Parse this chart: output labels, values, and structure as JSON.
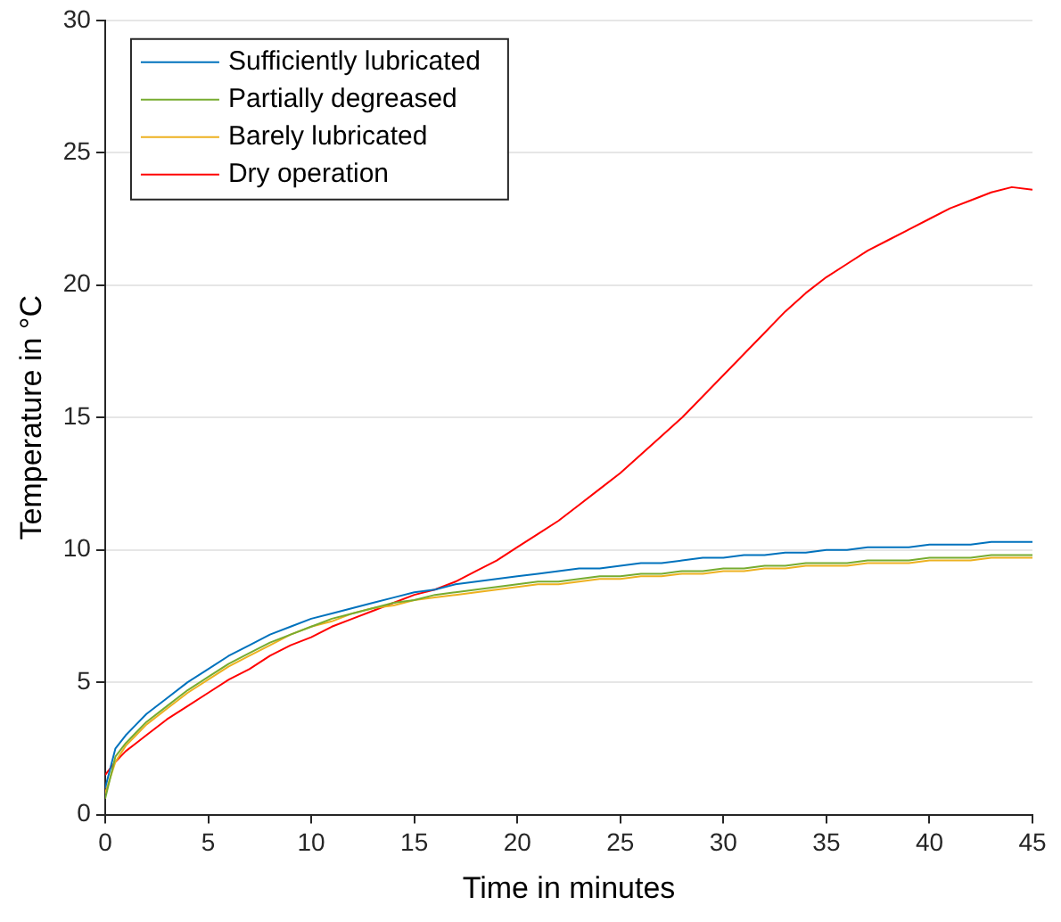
{
  "chart_data": {
    "type": "line",
    "xlabel": "Time in minutes",
    "ylabel": "Temperature in °C",
    "x": [
      0,
      0.5,
      1,
      1.5,
      2,
      3,
      4,
      5,
      6,
      7,
      8,
      9,
      10,
      11,
      12,
      13,
      14,
      15,
      16,
      17,
      18,
      19,
      20,
      21,
      22,
      23,
      24,
      25,
      26,
      27,
      28,
      29,
      30,
      31,
      32,
      33,
      34,
      35,
      36,
      37,
      38,
      39,
      40,
      41,
      42,
      43,
      44,
      45
    ],
    "series": [
      {
        "name": "Sufficiently lubricated",
        "color": "#0072bd",
        "values": [
          1.0,
          2.5,
          3.0,
          3.4,
          3.8,
          4.4,
          5.0,
          5.5,
          6.0,
          6.4,
          6.8,
          7.1,
          7.4,
          7.6,
          7.8,
          8.0,
          8.2,
          8.4,
          8.5,
          8.7,
          8.8,
          8.9,
          9.0,
          9.1,
          9.2,
          9.3,
          9.3,
          9.4,
          9.5,
          9.5,
          9.6,
          9.7,
          9.7,
          9.8,
          9.8,
          9.9,
          9.9,
          10.0,
          10.0,
          10.1,
          10.1,
          10.1,
          10.2,
          10.2,
          10.2,
          10.3,
          10.3,
          10.3
        ]
      },
      {
        "name": "Partially degreased",
        "color": "#77ac30",
        "values": [
          0.6,
          2.2,
          2.7,
          3.1,
          3.5,
          4.1,
          4.7,
          5.2,
          5.7,
          6.1,
          6.5,
          6.8,
          7.1,
          7.4,
          7.6,
          7.8,
          8.0,
          8.1,
          8.3,
          8.4,
          8.5,
          8.6,
          8.7,
          8.8,
          8.8,
          8.9,
          9.0,
          9.0,
          9.1,
          9.1,
          9.2,
          9.2,
          9.3,
          9.3,
          9.4,
          9.4,
          9.5,
          9.5,
          9.5,
          9.6,
          9.6,
          9.6,
          9.7,
          9.7,
          9.7,
          9.8,
          9.8,
          9.8
        ]
      },
      {
        "name": "Barely lubricated",
        "color": "#edb120",
        "values": [
          0.8,
          2.0,
          2.6,
          3.0,
          3.4,
          4.0,
          4.6,
          5.1,
          5.6,
          6.0,
          6.4,
          6.8,
          7.1,
          7.3,
          7.6,
          7.8,
          7.9,
          8.1,
          8.2,
          8.3,
          8.4,
          8.5,
          8.6,
          8.7,
          8.7,
          8.8,
          8.9,
          8.9,
          9.0,
          9.0,
          9.1,
          9.1,
          9.2,
          9.2,
          9.3,
          9.3,
          9.4,
          9.4,
          9.4,
          9.5,
          9.5,
          9.5,
          9.6,
          9.6,
          9.6,
          9.7,
          9.7,
          9.7
        ]
      },
      {
        "name": "Dry operation",
        "color": "#ff0000",
        "values": [
          1.5,
          2.0,
          2.4,
          2.7,
          3.0,
          3.6,
          4.1,
          4.6,
          5.1,
          5.5,
          6.0,
          6.4,
          6.7,
          7.1,
          7.4,
          7.7,
          8.0,
          8.3,
          8.5,
          8.8,
          9.2,
          9.6,
          10.1,
          10.6,
          11.1,
          11.7,
          12.3,
          12.9,
          13.6,
          14.3,
          15.0,
          15.8,
          16.6,
          17.4,
          18.2,
          19.0,
          19.7,
          20.3,
          20.8,
          21.3,
          21.7,
          22.1,
          22.5,
          22.9,
          23.2,
          23.5,
          23.7,
          23.6
        ]
      }
    ],
    "xlim": [
      0,
      45
    ],
    "xticks": [
      0,
      5,
      10,
      15,
      20,
      25,
      30,
      35,
      40,
      45
    ],
    "ylim": [
      0,
      30
    ],
    "yticks": [
      0,
      5,
      10,
      15,
      20,
      25,
      30
    ],
    "grid": "y",
    "legend": "top left",
    "marker": "none",
    "line_style": "solid"
  }
}
